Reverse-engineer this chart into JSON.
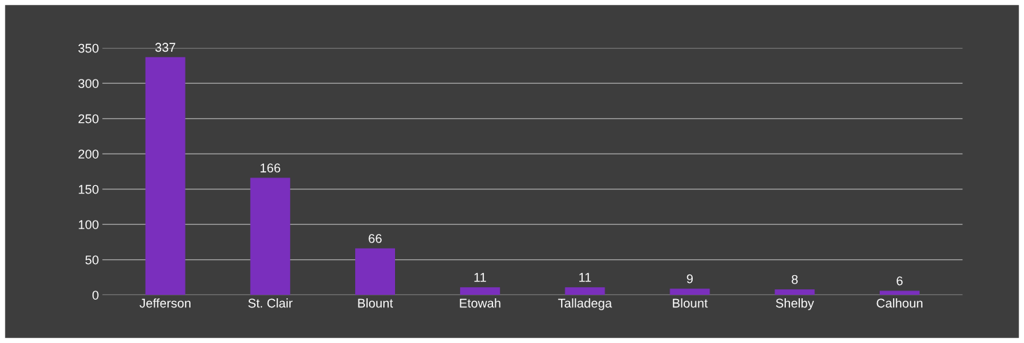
{
  "chart_data": {
    "type": "bar",
    "categories": [
      "Jefferson",
      "St. Clair",
      "Blount",
      "Etowah",
      "Talladega",
      "Blount",
      "Shelby",
      "Calhoun"
    ],
    "values": [
      337,
      166,
      66,
      11,
      11,
      9,
      8,
      6
    ],
    "color": "#7a2fbd",
    "ylim": [
      0,
      350
    ],
    "yticks": [
      0,
      50,
      100,
      150,
      200,
      250,
      300,
      350
    ],
    "grid": "y",
    "data_labels": true
  }
}
